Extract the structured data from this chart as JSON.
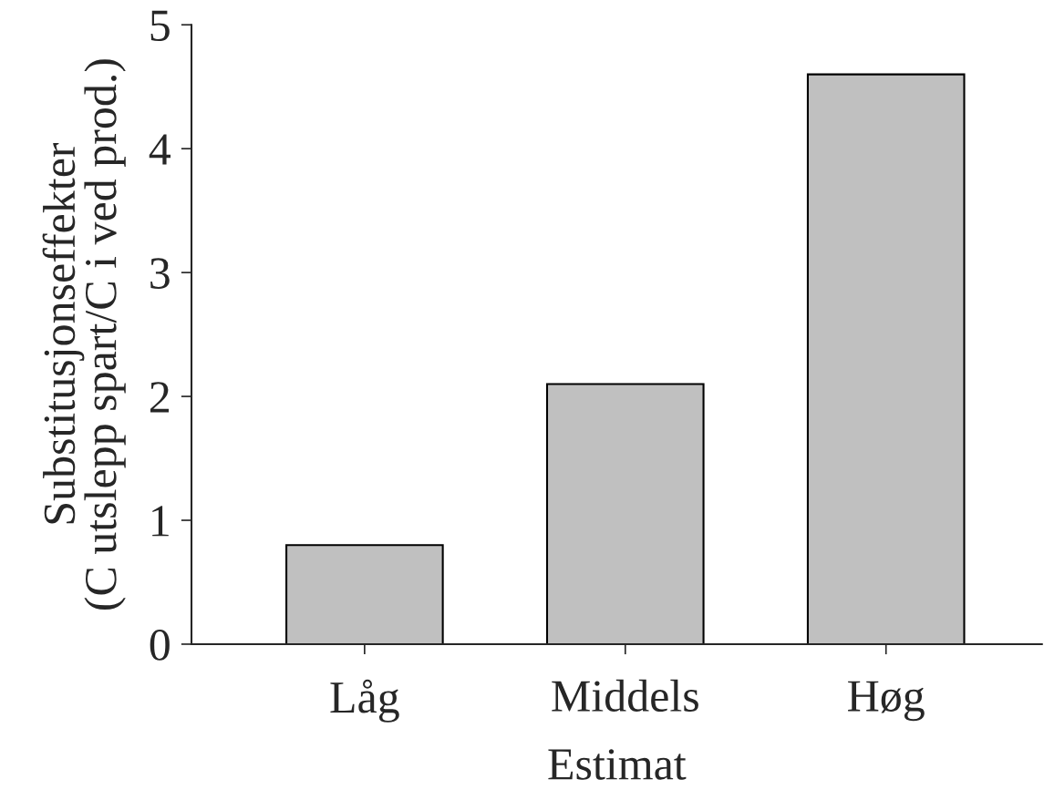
{
  "chart_data": {
    "type": "bar",
    "xlabel": "Estimat",
    "ylabel": "Substitusjonseffekter\n(C utslepp spart/C i ved prod.)",
    "categories": [
      "Låg",
      "Middels",
      "Høg"
    ],
    "values": [
      0.8,
      2.1,
      4.6
    ],
    "color": "#c0c0c0",
    "ylim": [
      0,
      5
    ],
    "yticks": [
      0,
      1,
      2,
      3,
      4,
      5
    ],
    "grid": false,
    "legend": false
  }
}
